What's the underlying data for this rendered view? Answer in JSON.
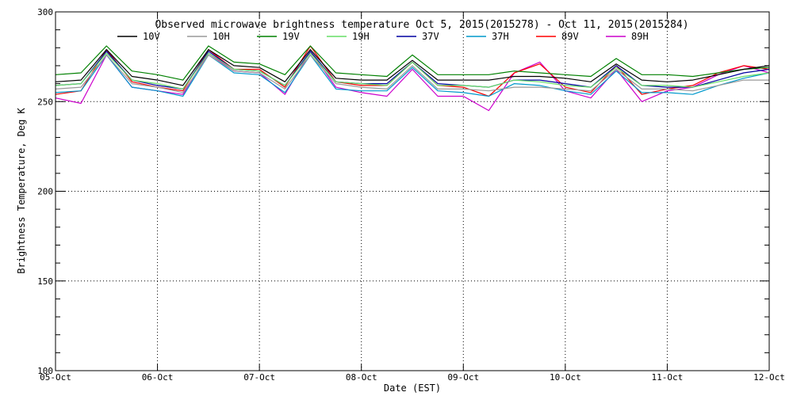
{
  "chart_data": {
    "type": "line",
    "title": "Observed microwave brightness temperature Oct  5, 2015(2015278) - Oct 11, 2015(2015284)",
    "xlabel": "Date (EST)",
    "ylabel": "Brightness Temperature, Deg K",
    "ylim": [
      100,
      300
    ],
    "yticks": [
      "100",
      "150",
      "200",
      "250",
      "300"
    ],
    "xlim": [
      "2015-10-05",
      "2015-10-12"
    ],
    "xticks": [
      "05-Oct",
      "06-Oct",
      "07-Oct",
      "08-Oct",
      "09-Oct",
      "10-Oct",
      "11-Oct",
      "12-Oct"
    ],
    "grid": true,
    "legend_position": "top",
    "x": [
      "2015-10-05T00:00",
      "2015-10-05T06:00",
      "2015-10-05T12:00",
      "2015-10-05T18:00",
      "2015-10-06T00:00",
      "2015-10-06T06:00",
      "2015-10-06T12:00",
      "2015-10-06T18:00",
      "2015-10-07T00:00",
      "2015-10-07T06:00",
      "2015-10-07T12:00",
      "2015-10-07T18:00",
      "2015-10-08T00:00",
      "2015-10-08T06:00",
      "2015-10-08T12:00",
      "2015-10-08T18:00",
      "2015-10-09T00:00",
      "2015-10-09T06:00",
      "2015-10-09T12:00",
      "2015-10-09T18:00",
      "2015-10-10T00:00",
      "2015-10-10T06:00",
      "2015-10-10T12:00",
      "2015-10-10T18:00",
      "2015-10-11T00:00",
      "2015-10-11T06:00",
      "2015-10-11T12:00",
      "2015-10-11T18:00",
      "2015-10-12T00:00"
    ],
    "series": [
      {
        "name": "10V",
        "color": "#000000",
        "values": [
          261,
          262,
          279,
          264,
          262,
          259,
          279,
          270,
          269,
          261,
          279,
          263,
          262,
          262,
          273,
          262,
          262,
          262,
          264,
          264,
          263,
          261,
          271,
          262,
          261,
          262,
          265,
          268,
          270
        ]
      },
      {
        "name": "10H",
        "color": "#999999",
        "values": [
          257,
          258,
          276,
          260,
          258,
          255,
          276,
          267,
          266,
          257,
          276,
          260,
          258,
          257,
          270,
          257,
          257,
          256,
          258,
          258,
          257,
          256,
          268,
          257,
          257,
          256,
          259,
          262,
          262
        ]
      },
      {
        "name": "19V",
        "color": "#008000",
        "values": [
          265,
          266,
          281,
          267,
          265,
          262,
          281,
          272,
          271,
          265,
          281,
          266,
          265,
          264,
          276,
          265,
          265,
          265,
          267,
          266,
          265,
          264,
          274,
          265,
          265,
          264,
          266,
          268,
          269
        ]
      },
      {
        "name": "19H",
        "color": "#66dd66",
        "values": [
          259,
          260,
          277,
          262,
          260,
          257,
          277,
          268,
          267,
          259,
          277,
          261,
          260,
          259,
          272,
          259,
          259,
          258,
          262,
          261,
          259,
          258,
          269,
          259,
          259,
          258,
          261,
          264,
          266
        ]
      },
      {
        "name": "37V",
        "color": "#0000a0",
        "values": [
          259,
          260,
          278,
          262,
          259,
          257,
          278,
          268,
          267,
          259,
          278,
          261,
          260,
          260,
          272,
          260,
          259,
          258,
          262,
          262,
          260,
          258,
          270,
          259,
          258,
          258,
          262,
          266,
          268
        ]
      },
      {
        "name": "37H",
        "color": "#0099cc",
        "values": [
          255,
          256,
          276,
          258,
          256,
          253,
          276,
          266,
          265,
          255,
          276,
          257,
          256,
          256,
          269,
          256,
          255,
          253,
          260,
          259,
          256,
          254,
          267,
          255,
          255,
          254,
          259,
          263,
          266
        ]
      },
      {
        "name": "89V",
        "color": "#ff0000",
        "values": [
          254,
          256,
          279,
          261,
          258,
          256,
          279,
          268,
          268,
          258,
          281,
          261,
          259,
          259,
          272,
          259,
          258,
          253,
          266,
          271,
          258,
          255,
          270,
          254,
          257,
          259,
          266,
          270,
          268
        ]
      },
      {
        "name": "89H",
        "color": "#cc00cc",
        "values": [
          252,
          249,
          276,
          258,
          256,
          254,
          277,
          267,
          266,
          254,
          278,
          258,
          255,
          253,
          268,
          253,
          253,
          245,
          266,
          272,
          256,
          252,
          268,
          250,
          256,
          258,
          265,
          270,
          266
        ]
      }
    ]
  }
}
